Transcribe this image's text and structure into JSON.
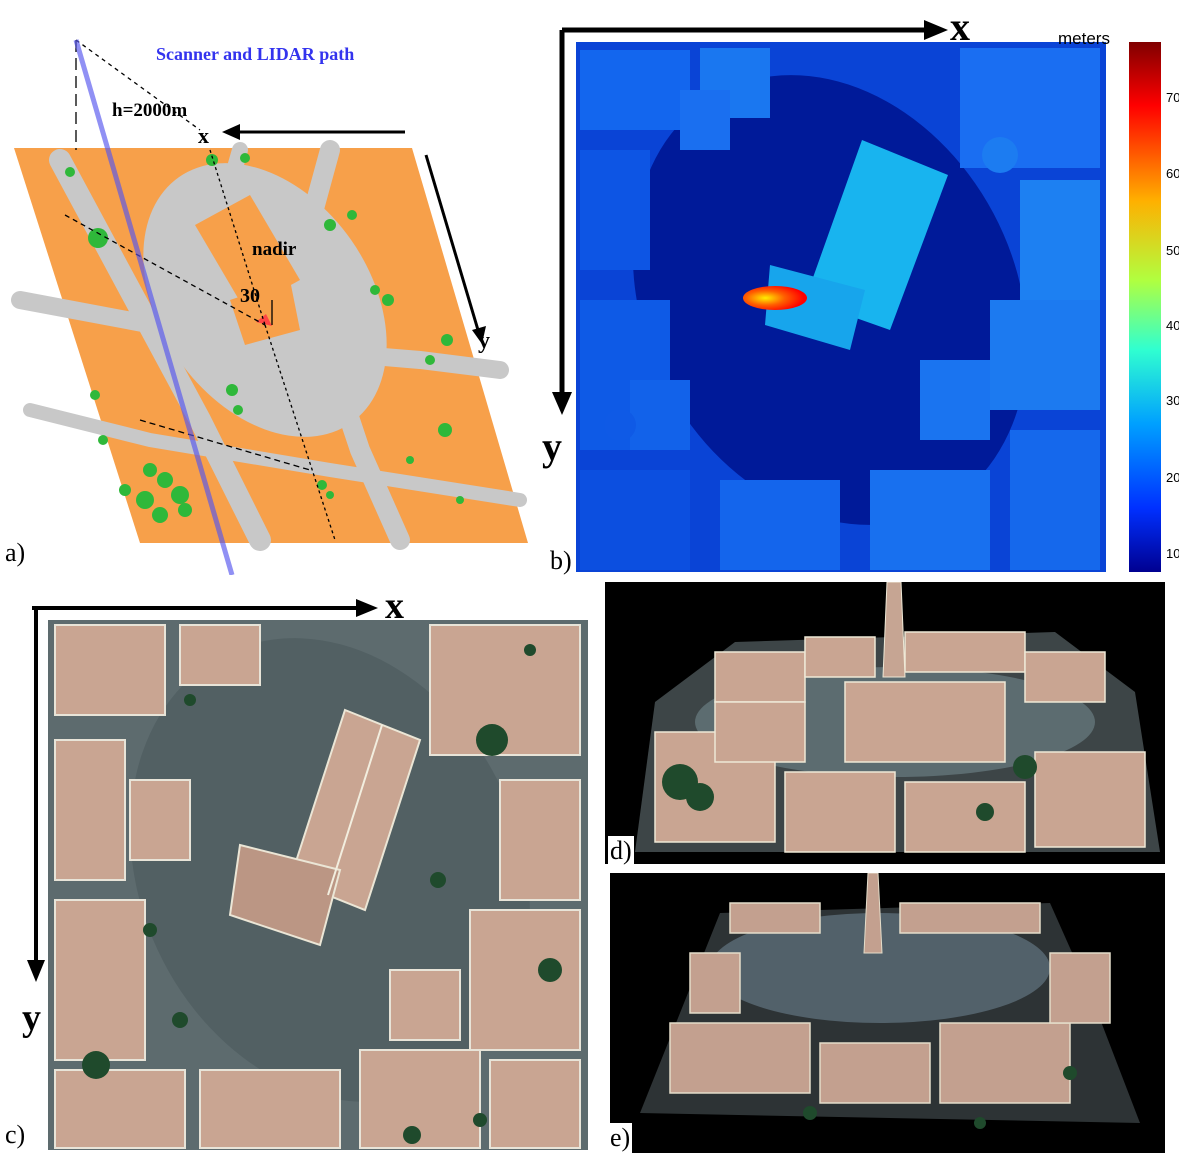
{
  "panel_a": {
    "label": "a)",
    "path_title": "Scanner and LIDAR path",
    "height_label": "h=2000m",
    "nadir_label": "nadir",
    "angle_label": "30",
    "axis_x": "x",
    "axis_y": "y"
  },
  "panel_b": {
    "label": "b)",
    "axis_x": "x",
    "axis_y": "y",
    "colorbar_title": "meters",
    "colorbar_ticks": [
      "70",
      "60",
      "50",
      "40",
      "30",
      "20",
      "10"
    ]
  },
  "panel_c": {
    "label": "c)",
    "axis_x": "x",
    "axis_y": "y"
  },
  "panel_d": {
    "label": "d)"
  },
  "panel_e": {
    "label": "e)"
  },
  "colors": {
    "building_orange": "#f7a04a",
    "street_gray": "#c8c8c8",
    "tree_green": "#2fb83a",
    "path_blue": "#5555ee",
    "dsm_deep": "#0011aa",
    "render_roof": "#c9a592",
    "render_ground": "#5d6b6e"
  }
}
